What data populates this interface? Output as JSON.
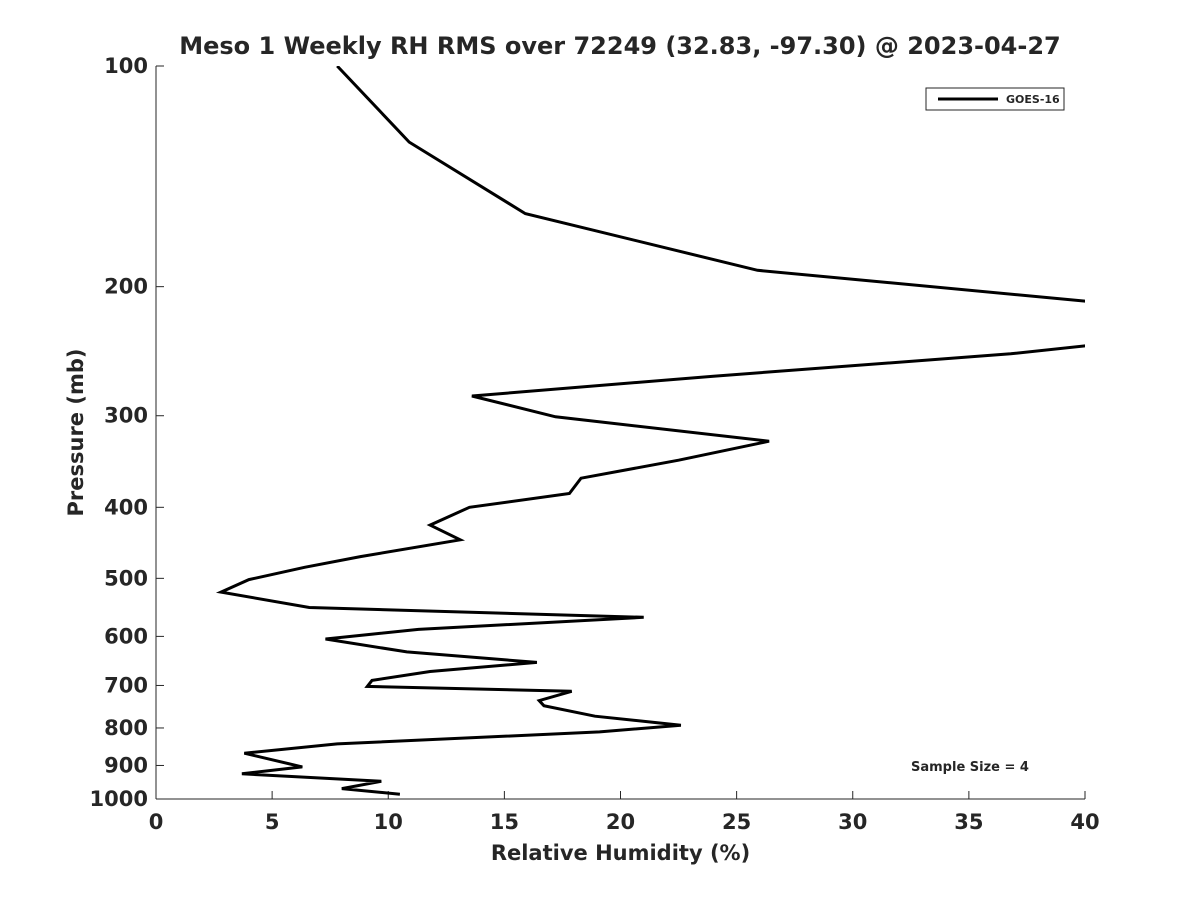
{
  "chart_data": {
    "type": "line",
    "title": "Meso 1 Weekly RH RMS over 72249 (32.83, -97.30) @ 2023-04-27",
    "xlabel": "Relative Humidity (%)",
    "ylabel": "Pressure (mb)",
    "xlim": [
      0,
      40
    ],
    "ylim": [
      100,
      1000
    ],
    "yscale": "log",
    "x_ticks": [
      0,
      5,
      10,
      15,
      20,
      25,
      30,
      35,
      40
    ],
    "y_ticks": [
      100,
      200,
      300,
      400,
      500,
      600,
      700,
      800,
      900,
      1000
    ],
    "grid": false,
    "legend_position": "top-right",
    "annotation": "Sample Size = 4",
    "series": [
      {
        "name": "GOES-16",
        "color": "#000000",
        "segments": [
          [
            [
              7.8,
              100
            ],
            [
              10.9,
              127
            ],
            [
              15.9,
              159
            ],
            [
              25.9,
              190
            ],
            [
              40.5,
              210
            ]
          ],
          [
            [
              40.5,
              240
            ],
            [
              36.8,
              247
            ],
            [
              24,
              265
            ],
            [
              13.6,
              282
            ],
            [
              17.2,
              301
            ],
            [
              26.4,
              325
            ],
            [
              22.5,
              345
            ],
            [
              18.3,
              365
            ],
            [
              17.8,
              383
            ],
            [
              13.5,
              400
            ],
            [
              11.8,
              423
            ],
            [
              13.1,
              443
            ],
            [
              8.8,
              467
            ],
            [
              6.4,
              483
            ],
            [
              4,
              502
            ],
            [
              2.8,
              522
            ],
            [
              6.6,
              548
            ],
            [
              21,
              565
            ],
            [
              11.3,
              587
            ],
            [
              7.3,
              605
            ],
            [
              10.8,
              630
            ],
            [
              16.4,
              651
            ],
            [
              11.8,
              670
            ],
            [
              9.3,
              689
            ],
            [
              9.1,
              702
            ],
            [
              17.9,
              713
            ],
            [
              16.5,
              734
            ],
            [
              16.7,
              746
            ],
            [
              18.9,
              771
            ],
            [
              22.6,
              793
            ],
            [
              19.1,
              810
            ],
            [
              7.8,
              841
            ],
            [
              3.8,
              866
            ],
            [
              6.3,
              904
            ],
            [
              3.7,
              924
            ],
            [
              9.7,
              946
            ],
            [
              8,
              968
            ],
            [
              10.5,
              985
            ]
          ]
        ]
      }
    ]
  }
}
